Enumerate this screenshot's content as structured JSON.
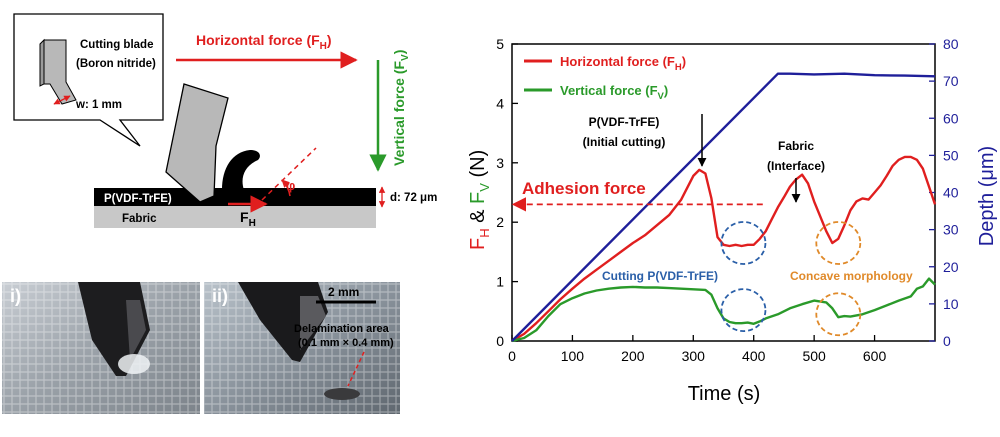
{
  "schematic": {
    "callout_line1": "Cutting blade",
    "callout_line2": "(Boron nitride)",
    "width_label": "w: 1 mm",
    "horizontal_force": "Horizontal force (F",
    "horizontal_force_sub": "H",
    "vertical_force": "Vertical force (F",
    "vertical_force_sub": "V",
    "film_label": "P(VDF-TrFE)",
    "substrate_label": "Fabric",
    "fh_label": "F",
    "fh_sub": "H",
    "angle_label": "φ",
    "thickness_label": "d: 72 μm",
    "colors": {
      "force_red": "#e01f1f",
      "force_green": "#2a9a2a",
      "film": "#000000",
      "substrate": "#c8c8c8",
      "blade": "#b8b8b8"
    }
  },
  "photos": {
    "i_label": "i)",
    "ii_label": "ii)",
    "scale_label": "2 mm",
    "delam_line1": "Delamination area",
    "delam_line2": "(0.1 mm × 0.4 mm)"
  },
  "chart_data": {
    "type": "line",
    "xlabel": "Time (s)",
    "ylabel_left": "F",
    "ylabel_left_sub1": "H",
    "ylabel_left_mid": " & ",
    "ylabel_left2": "F",
    "ylabel_left_sub2": "V",
    "ylabel_left_unit": " (N)",
    "ylabel_right": "Depth (μm)",
    "xlim": [
      0,
      700
    ],
    "ylim_left": [
      0,
      5
    ],
    "ylim_right": [
      0,
      80
    ],
    "x_ticks": [
      0,
      100,
      200,
      300,
      400,
      500,
      600
    ],
    "y_ticks_left": [
      0,
      1,
      2,
      3,
      4,
      5
    ],
    "y_ticks_right": [
      0,
      10,
      20,
      30,
      40,
      50,
      60,
      70,
      80
    ],
    "legend": {
      "placement": "top-left"
    },
    "series": [
      {
        "name": "Horizontal force (F",
        "name_sub": "H",
        "axis": "left",
        "color": "#e01f1f",
        "x": [
          0,
          20,
          40,
          60,
          80,
          100,
          120,
          140,
          160,
          180,
          200,
          220,
          240,
          260,
          280,
          300,
          310,
          320,
          330,
          340,
          350,
          360,
          370,
          380,
          390,
          400,
          410,
          420,
          430,
          440,
          450,
          460,
          470,
          480,
          490,
          500,
          510,
          520,
          530,
          540,
          550,
          560,
          570,
          580,
          590,
          600,
          610,
          620,
          630,
          640,
          650,
          660,
          670,
          680,
          690,
          700
        ],
        "y": [
          0,
          0.12,
          0.3,
          0.5,
          0.7,
          0.88,
          1.05,
          1.2,
          1.35,
          1.5,
          1.65,
          1.78,
          1.95,
          2.12,
          2.38,
          2.78,
          2.88,
          2.82,
          2.4,
          1.75,
          1.62,
          1.6,
          1.62,
          1.6,
          1.62,
          1.62,
          1.72,
          1.85,
          2.05,
          2.25,
          2.42,
          2.6,
          2.72,
          2.8,
          2.65,
          2.35,
          2.1,
          1.85,
          1.65,
          1.72,
          1.95,
          2.2,
          2.35,
          2.4,
          2.38,
          2.5,
          2.62,
          2.78,
          2.95,
          3.05,
          3.1,
          3.1,
          3.05,
          2.9,
          2.6,
          2.3
        ]
      },
      {
        "name": "Vertical force (F",
        "name_sub": "V",
        "axis": "left",
        "color": "#2a9a2a",
        "x": [
          0,
          20,
          40,
          60,
          80,
          100,
          120,
          140,
          160,
          180,
          200,
          220,
          240,
          260,
          280,
          300,
          320,
          330,
          340,
          350,
          360,
          370,
          380,
          390,
          400,
          410,
          420,
          440,
          460,
          480,
          500,
          520,
          530,
          540,
          550,
          560,
          580,
          600,
          620,
          640,
          660,
          670,
          680,
          690,
          700
        ],
        "y": [
          0,
          0.05,
          0.18,
          0.42,
          0.62,
          0.72,
          0.8,
          0.85,
          0.88,
          0.9,
          0.91,
          0.9,
          0.9,
          0.89,
          0.88,
          0.87,
          0.86,
          0.78,
          0.55,
          0.38,
          0.32,
          0.3,
          0.3,
          0.31,
          0.29,
          0.33,
          0.38,
          0.45,
          0.55,
          0.62,
          0.68,
          0.65,
          0.55,
          0.4,
          0.42,
          0.41,
          0.45,
          0.52,
          0.6,
          0.68,
          0.75,
          0.88,
          0.92,
          1.05,
          0.95
        ]
      },
      {
        "name": "Depth",
        "axis": "right",
        "color": "#1f1f9a",
        "x": [
          0,
          440,
          460,
          500,
          550,
          600,
          650,
          700
        ],
        "y": [
          0,
          72,
          72,
          71.8,
          72,
          71.6,
          71.5,
          71.3
        ]
      }
    ],
    "annotations": {
      "initial_cutting_line1": "P(VDF-TrFE)",
      "initial_cutting_line2": "(Initial cutting)",
      "interface_line1": "Fabric",
      "interface_line2": "(Interface)",
      "adhesion": "Adhesion force",
      "adhesion_level": 2.3,
      "cutting_label": "Cutting P(VDF-TrFE)",
      "concave_label": "Concave morphology",
      "circles": [
        {
          "x": 383,
          "y": 1.65,
          "color": "#2a5fa8"
        },
        {
          "x": 540,
          "y": 1.65,
          "color": "#e08a2a"
        },
        {
          "x": 383,
          "y": 0.52,
          "color": "#2a5fa8"
        },
        {
          "x": 540,
          "y": 0.45,
          "color": "#e08a2a"
        }
      ],
      "annotation_colors": {
        "adhesion": "#e01f1f",
        "cutting": "#2a5fa8",
        "concave": "#e08a2a"
      }
    }
  }
}
